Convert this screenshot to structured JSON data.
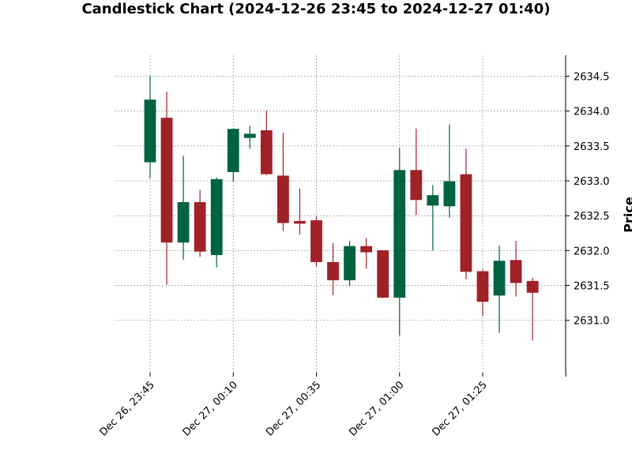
{
  "chart_data": {
    "type": "candlestick",
    "title": "Candlestick Chart (2024-12-26 23:45 to 2024-12-27 01:40)",
    "ylabel": "Price",
    "xlabel": "",
    "ylim": [
      2630.25,
      2634.8
    ],
    "yticks": [
      2631.0,
      2631.5,
      2632.0,
      2632.5,
      2633.0,
      2633.5,
      2634.0,
      2634.5
    ],
    "ytick_labels": [
      "2631.0",
      "2631.5",
      "2632.0",
      "2632.5",
      "2633.0",
      "2633.5",
      "2634.0",
      "2634.5"
    ],
    "xtick_indices": [
      0,
      5,
      10,
      15,
      20,
      25
    ],
    "xtick_labels": [
      "Dec 26, 23:45",
      "Dec 27, 00:10",
      "Dec 27, 00:35",
      "Dec 27, 01:00",
      "Dec 27, 01:25",
      ""
    ],
    "grid": true,
    "colors": {
      "up": "#006340",
      "down": "#a02128"
    },
    "candles": [
      {
        "time": "2024-12-26 23:45",
        "open": 2633.27,
        "high": 2634.5,
        "low": 2633.04,
        "close": 2634.16
      },
      {
        "time": "2024-12-26 23:50",
        "open": 2633.9,
        "high": 2634.28,
        "low": 2631.51,
        "close": 2632.12
      },
      {
        "time": "2024-12-26 23:55",
        "open": 2632.12,
        "high": 2633.36,
        "low": 2631.87,
        "close": 2632.69
      },
      {
        "time": "2024-12-27 00:00",
        "open": 2632.69,
        "high": 2632.87,
        "low": 2631.91,
        "close": 2631.99
      },
      {
        "time": "2024-12-27 00:05",
        "open": 2631.94,
        "high": 2633.05,
        "low": 2631.76,
        "close": 2633.02
      },
      {
        "time": "2024-12-27 00:10",
        "open": 2633.13,
        "high": 2633.75,
        "low": 2632.99,
        "close": 2633.74
      },
      {
        "time": "2024-12-27 00:15",
        "open": 2633.62,
        "high": 2633.79,
        "low": 2633.46,
        "close": 2633.67
      },
      {
        "time": "2024-12-27 00:20",
        "open": 2633.72,
        "high": 2634.01,
        "low": 2633.08,
        "close": 2633.1
      },
      {
        "time": "2024-12-27 00:25",
        "open": 2633.07,
        "high": 2633.69,
        "low": 2632.28,
        "close": 2632.4
      },
      {
        "time": "2024-12-27 00:30",
        "open": 2632.42,
        "high": 2632.89,
        "low": 2632.23,
        "close": 2632.39
      },
      {
        "time": "2024-12-27 00:35",
        "open": 2632.43,
        "high": 2632.49,
        "low": 2631.77,
        "close": 2631.84
      },
      {
        "time": "2024-12-27 00:40",
        "open": 2631.83,
        "high": 2632.11,
        "low": 2631.36,
        "close": 2631.58
      },
      {
        "time": "2024-12-27 00:45",
        "open": 2631.58,
        "high": 2632.14,
        "low": 2631.49,
        "close": 2632.06
      },
      {
        "time": "2024-12-27 00:50",
        "open": 2632.06,
        "high": 2632.18,
        "low": 2631.74,
        "close": 2631.98
      },
      {
        "time": "2024-12-27 00:55",
        "open": 2632.0,
        "high": 2632.0,
        "low": 2631.32,
        "close": 2631.33
      },
      {
        "time": "2024-12-27 01:00",
        "open": 2631.33,
        "high": 2633.47,
        "low": 2630.78,
        "close": 2633.15
      },
      {
        "time": "2024-12-27 01:05",
        "open": 2633.15,
        "high": 2633.75,
        "low": 2632.51,
        "close": 2632.73
      },
      {
        "time": "2024-12-27 01:10",
        "open": 2632.65,
        "high": 2632.94,
        "low": 2632.0,
        "close": 2632.79
      },
      {
        "time": "2024-12-27 01:15",
        "open": 2632.64,
        "high": 2633.81,
        "low": 2632.47,
        "close": 2632.99
      },
      {
        "time": "2024-12-27 01:20",
        "open": 2633.09,
        "high": 2633.46,
        "low": 2631.59,
        "close": 2631.7
      },
      {
        "time": "2024-12-27 01:25",
        "open": 2631.7,
        "high": 2631.73,
        "low": 2631.06,
        "close": 2631.27
      },
      {
        "time": "2024-12-27 01:30",
        "open": 2631.36,
        "high": 2632.07,
        "low": 2630.82,
        "close": 2631.85
      },
      {
        "time": "2024-12-27 01:35",
        "open": 2631.86,
        "high": 2632.14,
        "low": 2631.34,
        "close": 2631.54
      },
      {
        "time": "2024-12-27 01:40",
        "open": 2631.56,
        "high": 2631.61,
        "low": 2630.71,
        "close": 2631.4
      }
    ]
  }
}
